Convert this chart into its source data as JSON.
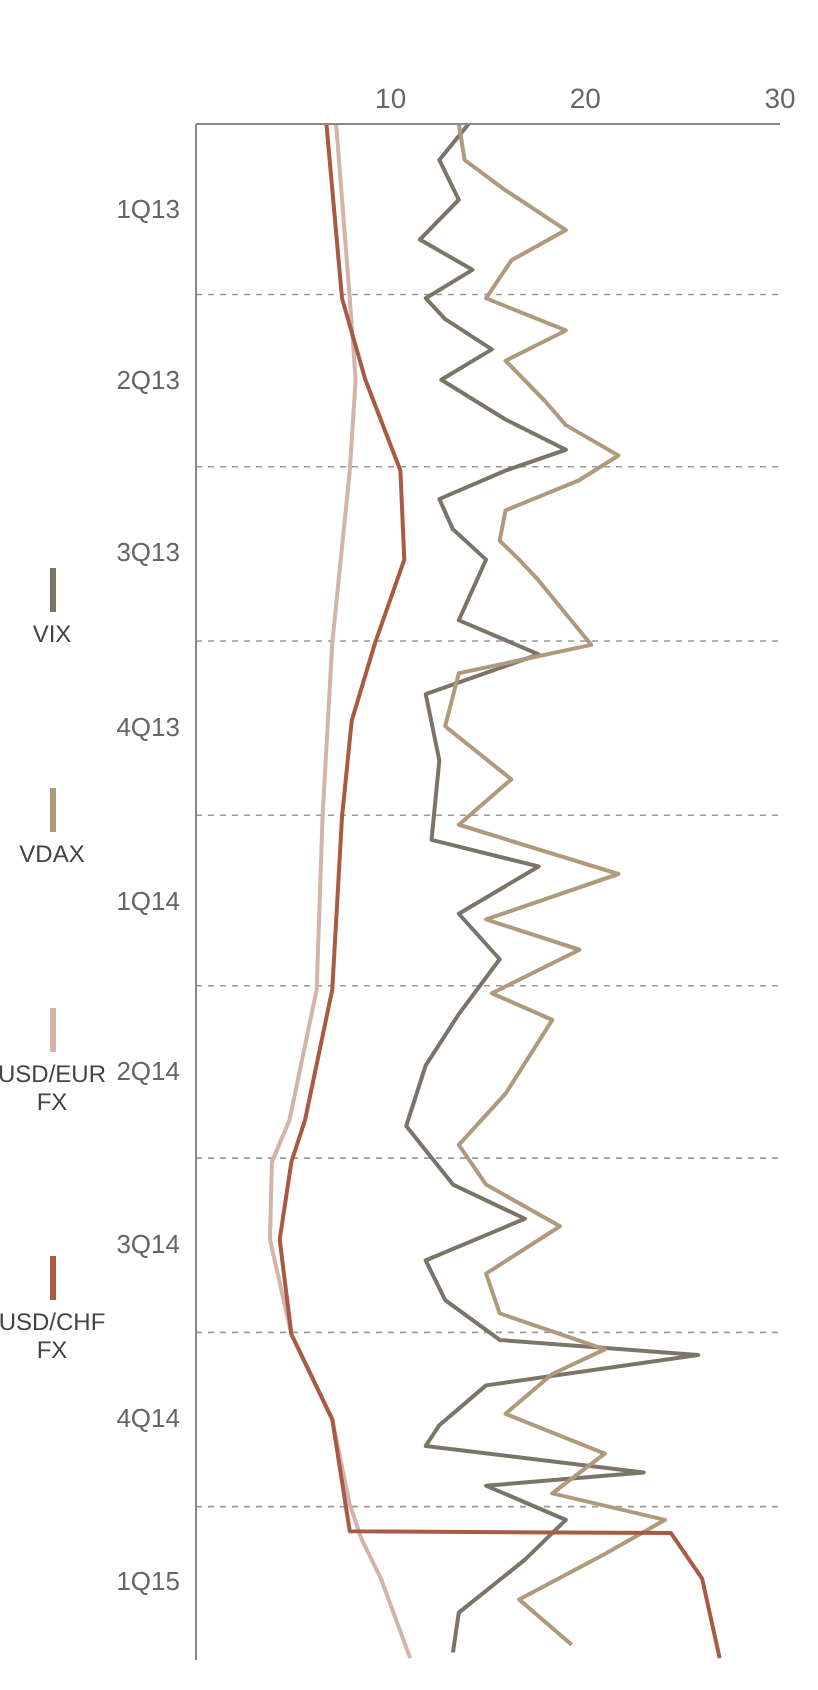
{
  "chart_data": {
    "type": "line",
    "orientation": "horizontal",
    "ylim": [
      "2015-03-23",
      "2013-01-01"
    ],
    "xlim": [
      0,
      30
    ],
    "xticks": [
      10,
      20,
      30
    ],
    "yticks": [
      {
        "value": "2013-01-01",
        "label": null
      },
      {
        "value": "2013-02-15",
        "label": "1Q13"
      },
      {
        "value": "2013-04-01",
        "label": null
      },
      {
        "value": "2013-05-16",
        "label": "2Q13"
      },
      {
        "value": "2013-07-01",
        "label": null
      },
      {
        "value": "2013-08-15",
        "label": "3Q13"
      },
      {
        "value": "2013-10-01",
        "label": null
      },
      {
        "value": "2013-11-15",
        "label": "4Q13"
      },
      {
        "value": "2014-01-01",
        "label": null
      },
      {
        "value": "2014-02-15",
        "label": "1Q14"
      },
      {
        "value": "2014-04-01",
        "label": null
      },
      {
        "value": "2014-05-16",
        "label": "2Q14"
      },
      {
        "value": "2014-07-01",
        "label": null
      },
      {
        "value": "2014-08-15",
        "label": "3Q14"
      },
      {
        "value": "2014-10-01",
        "label": null
      },
      {
        "value": "2014-11-15",
        "label": "4Q14"
      },
      {
        "value": "2015-01-01",
        "label": null
      },
      {
        "value": "2015-02-09",
        "label": "1Q15"
      }
    ],
    "grid": "y",
    "legend": "left",
    "series": [
      {
        "name": "VIX",
        "color": "#7d7468",
        "x": [
          "2013-01-01",
          "2013-01-20",
          "2013-02-10",
          "2013-03-03",
          "2013-03-19",
          "2013-04-03",
          "2013-04-14",
          "2013-04-30",
          "2013-05-16",
          "2013-06-06",
          "2013-06-22",
          "2013-07-03",
          "2013-07-18",
          "2013-08-03",
          "2013-08-19",
          "2013-09-20",
          "2013-10-08",
          "2013-10-29",
          "2013-12-03",
          "2014-01-14",
          "2014-01-28",
          "2014-02-22",
          "2014-03-18",
          "2014-04-16",
          "2014-05-13",
          "2014-06-14",
          "2014-07-15",
          "2014-08-02",
          "2014-08-24",
          "2014-09-14",
          "2014-10-05",
          "2014-10-13",
          "2014-10-29",
          "2014-11-19",
          "2014-11-30",
          "2014-12-14",
          "2014-12-21",
          "2015-01-08",
          "2015-01-29",
          "2015-02-26",
          "2015-03-19"
        ],
        "values": [
          14.0,
          12.5,
          13.5,
          11.5,
          14.2,
          11.8,
          12.8,
          15.2,
          12.6,
          15.9,
          19.0,
          15.9,
          12.5,
          13.2,
          14.9,
          13.5,
          17.6,
          11.8,
          12.5,
          12.1,
          17.6,
          13.5,
          15.6,
          13.5,
          11.8,
          10.8,
          13.2,
          16.9,
          11.8,
          12.8,
          15.6,
          25.8,
          14.9,
          12.5,
          11.8,
          23.0,
          14.9,
          19.0,
          16.9,
          13.5,
          13.2
        ]
      },
      {
        "name": "VDAX",
        "color": "#b09a7c",
        "x": [
          "2013-01-01",
          "2013-01-20",
          "2013-02-05",
          "2013-02-26",
          "2013-03-14",
          "2013-04-03",
          "2013-04-20",
          "2013-05-06",
          "2013-05-27",
          "2013-06-09",
          "2013-06-25",
          "2013-07-08",
          "2013-07-24",
          "2013-08-09",
          "2013-08-19",
          "2013-08-30",
          "2013-10-03",
          "2013-10-18",
          "2013-11-15",
          "2013-12-13",
          "2014-01-06",
          "2014-02-01",
          "2014-02-25",
          "2014-03-13",
          "2014-04-05",
          "2014-04-19",
          "2014-05-07",
          "2014-05-28",
          "2014-06-24",
          "2014-07-15",
          "2014-08-06",
          "2014-08-31",
          "2014-09-21",
          "2014-10-10",
          "2014-10-23",
          "2014-11-13",
          "2014-12-04",
          "2014-12-25",
          "2015-01-08",
          "2015-01-26",
          "2015-02-19",
          "2015-03-15"
        ],
        "values": [
          13.5,
          13.8,
          15.9,
          19.0,
          16.2,
          14.9,
          19.0,
          15.9,
          17.9,
          19.0,
          21.7,
          19.7,
          15.9,
          15.6,
          16.6,
          17.6,
          20.3,
          13.5,
          12.8,
          16.2,
          13.5,
          21.7,
          14.9,
          19.7,
          15.2,
          18.3,
          17.2,
          15.9,
          13.5,
          14.9,
          18.7,
          14.9,
          15.6,
          21.0,
          18.3,
          15.9,
          21.0,
          18.3,
          24.1,
          21.0,
          16.6,
          19.3
        ]
      },
      {
        "name": "USD/EUR FX",
        "color": "#d4b3a8",
        "x": [
          "2013-01-01",
          "2013-04-03",
          "2013-05-16",
          "2013-07-03",
          "2013-10-02",
          "2014-01-02",
          "2014-04-03",
          "2014-06-11",
          "2014-07-03",
          "2014-08-13",
          "2014-10-02",
          "2014-11-16",
          "2014-12-31",
          "2015-01-18",
          "2015-02-08",
          "2015-03-22"
        ],
        "values": [
          7.2,
          7.9,
          8.2,
          7.9,
          7.0,
          6.5,
          6.2,
          4.8,
          3.9,
          3.8,
          4.9,
          7.0,
          7.9,
          8.5,
          9.5,
          11.0
        ]
      },
      {
        "name": "USD/CHF FX",
        "color": "#a85a43",
        "x": [
          "2013-01-01",
          "2013-04-03",
          "2013-05-16",
          "2013-07-03",
          "2013-08-19",
          "2013-10-02",
          "2013-11-12",
          "2014-01-02",
          "2014-04-03",
          "2014-06-11",
          "2014-07-03",
          "2014-08-13",
          "2014-10-02",
          "2014-11-16",
          "2015-01-14",
          "2015-01-15",
          "2015-02-08",
          "2015-03-22"
        ],
        "values": [
          6.7,
          7.5,
          8.7,
          10.5,
          10.7,
          9.2,
          8.0,
          7.5,
          7.0,
          5.6,
          4.9,
          4.3,
          4.9,
          7.0,
          7.9,
          24.4,
          26.0,
          26.9
        ]
      }
    ]
  }
}
